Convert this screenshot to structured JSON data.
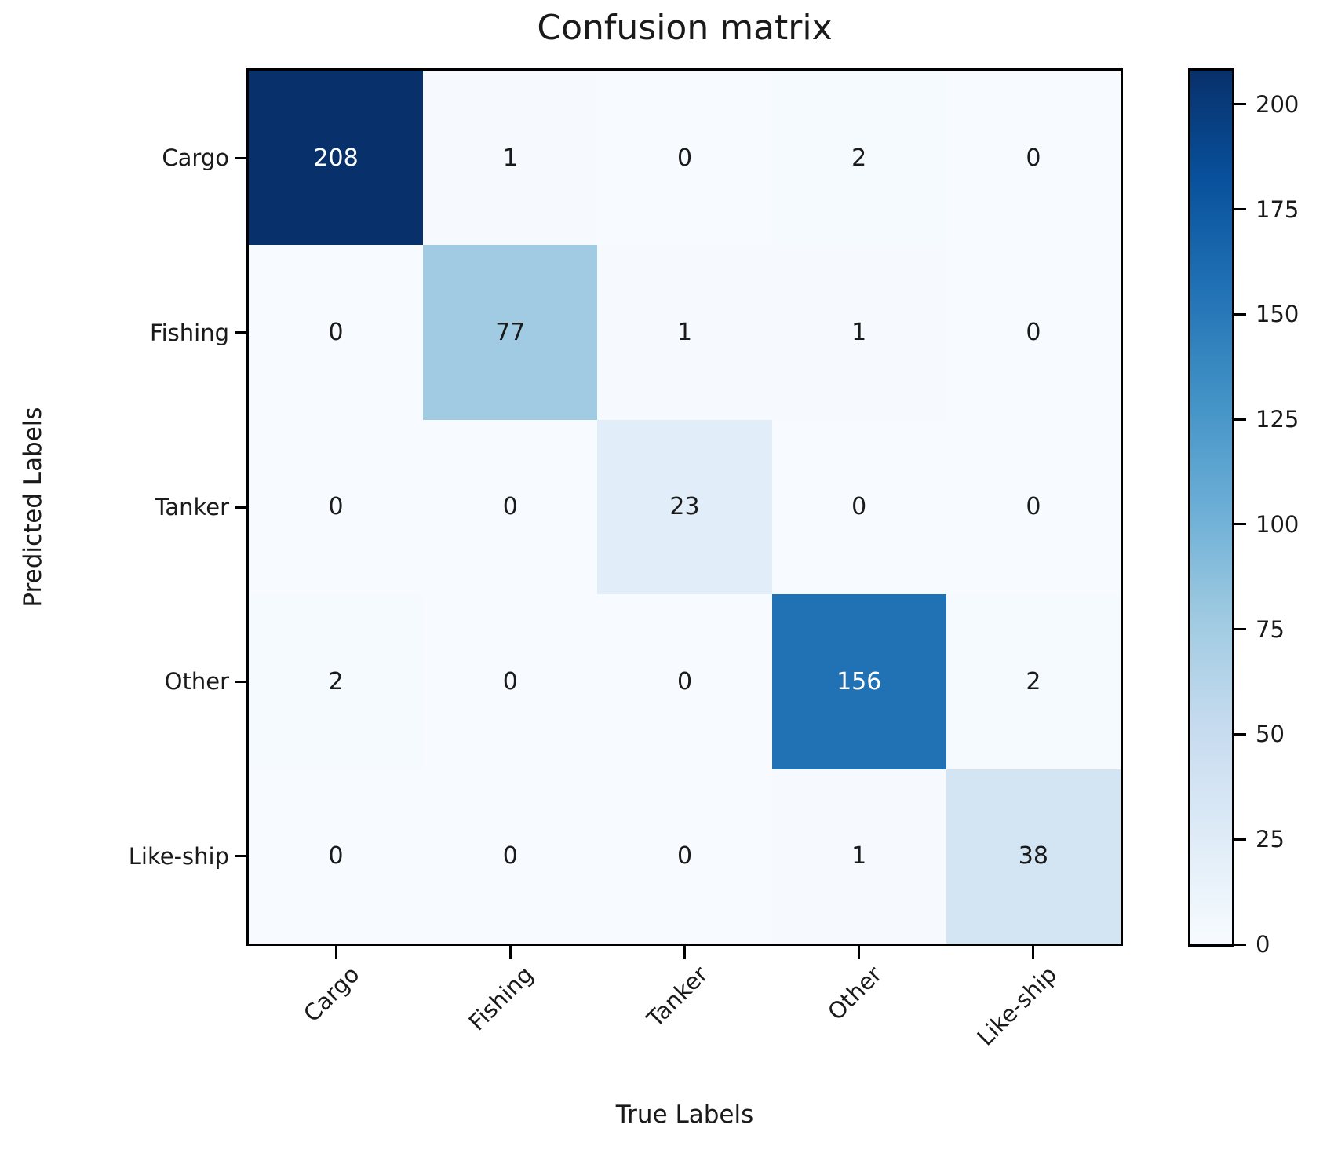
{
  "title": "Confusion matrix",
  "axes": {
    "x_title": "True Labels",
    "y_title": "Predicted Labels"
  },
  "chart_data": {
    "type": "heatmap",
    "title": "Confusion matrix",
    "xlabel": "True Labels",
    "ylabel": "Predicted Labels",
    "x_categories": [
      "Cargo",
      "Fishing",
      "Tanker",
      "Other",
      "Like-ship"
    ],
    "y_categories": [
      "Cargo",
      "Fishing",
      "Tanker",
      "Other",
      "Like-ship"
    ],
    "matrix": [
      [
        208,
        1,
        0,
        2,
        0
      ],
      [
        0,
        77,
        1,
        1,
        0
      ],
      [
        0,
        0,
        23,
        0,
        0
      ],
      [
        2,
        0,
        0,
        156,
        2
      ],
      [
        0,
        0,
        0,
        1,
        38
      ]
    ],
    "vmin": 0,
    "vmax": 208,
    "colormap": "Blues",
    "colormap_stops": [
      [
        247,
        251,
        255
      ],
      [
        222,
        235,
        247
      ],
      [
        198,
        219,
        239
      ],
      [
        158,
        202,
        225
      ],
      [
        107,
        174,
        214
      ],
      [
        66,
        146,
        198
      ],
      [
        33,
        113,
        181
      ],
      [
        8,
        81,
        156
      ],
      [
        8,
        48,
        107
      ]
    ],
    "text_color_threshold": 0.5,
    "cell_text_dark": "#1a1a1a",
    "cell_text_light": "#ffffff",
    "colorbar_ticks": [
      200,
      175,
      150,
      125,
      100,
      75,
      50,
      25,
      0
    ],
    "legend_position": "right-colorbar",
    "grid": false,
    "x_tick_rotation_deg": 45
  }
}
